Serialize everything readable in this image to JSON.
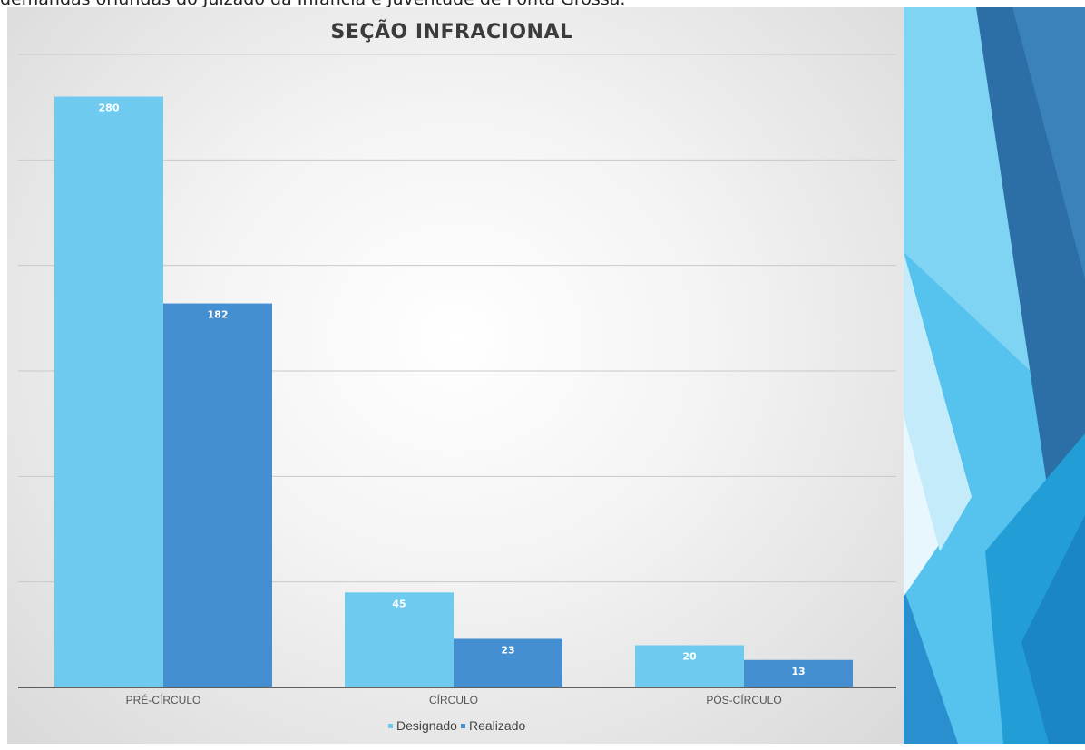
{
  "caption": "demandas oriundas do Juizado da Infância e Juventude de Ponta Grossa.",
  "colors": {
    "designado": "#6ecbef",
    "realizado": "#438fd1",
    "gridline": "#c9c9c9",
    "axis": "#333333"
  },
  "chart_data": {
    "type": "bar",
    "title": "SEÇÃO INFRACIONAL",
    "categories": [
      "PRÉ-CÍRCULO",
      "CÍRCULO",
      "PÓS-CÍRCULO"
    ],
    "series": [
      {
        "name": "Designado",
        "values": [
          280,
          45,
          20
        ]
      },
      {
        "name": "Realizado",
        "values": [
          182,
          23,
          13
        ]
      }
    ],
    "ylim": [
      0,
      300
    ],
    "grid": true,
    "legend": "bottom-center"
  }
}
